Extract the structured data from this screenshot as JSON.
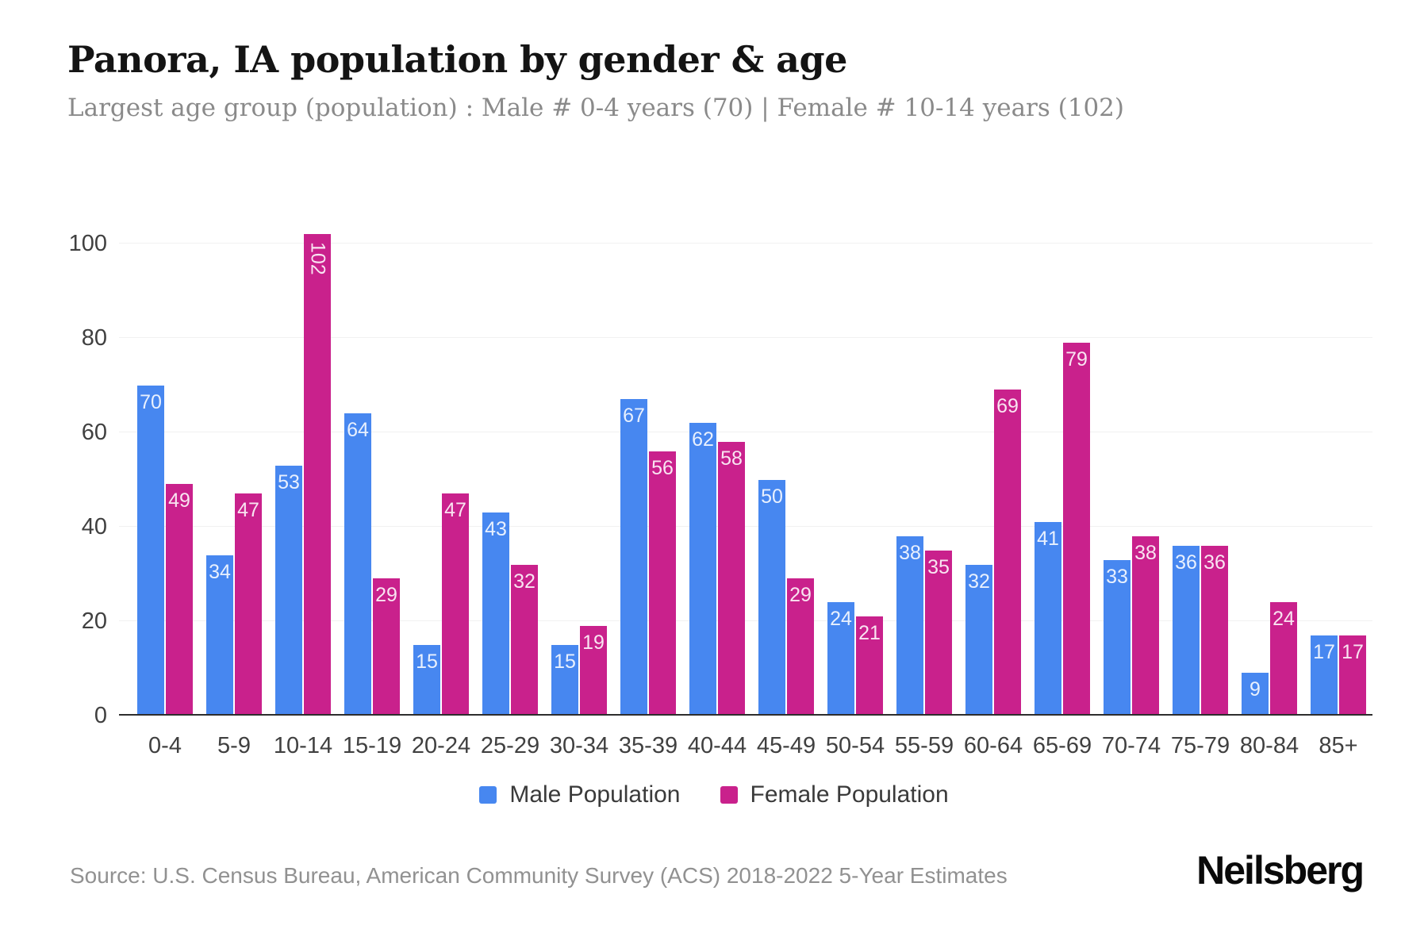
{
  "header": {
    "title": "Panora, IA population by gender & age",
    "subtitle": "Largest age group (population) : Male # 0-4 years (70) | Female # 10-14 years (102)"
  },
  "chart_data": {
    "type": "bar",
    "title": "Panora, IA population by gender & age",
    "categories": [
      "0-4",
      "5-9",
      "10-14",
      "15-19",
      "20-24",
      "25-29",
      "30-34",
      "35-39",
      "40-44",
      "45-49",
      "50-54",
      "55-59",
      "60-64",
      "65-69",
      "70-74",
      "75-79",
      "80-84",
      "85+"
    ],
    "series": [
      {
        "name": "Male Population",
        "color": "#4787F0",
        "values": [
          70,
          34,
          53,
          64,
          15,
          43,
          15,
          67,
          62,
          50,
          24,
          38,
          32,
          41,
          33,
          36,
          9,
          17
        ]
      },
      {
        "name": "Female Population",
        "color": "#C9218C",
        "values": [
          49,
          47,
          102,
          29,
          47,
          32,
          19,
          56,
          58,
          29,
          21,
          35,
          69,
          79,
          38,
          36,
          24,
          17
        ]
      }
    ],
    "xlabel": "",
    "ylabel": "",
    "ylim": [
      0,
      110
    ],
    "yticks": [
      0,
      20,
      40,
      60,
      80,
      100
    ],
    "grid": "horizontal",
    "legend_position": "bottom",
    "value_labels": "inside-top"
  },
  "legend": {
    "items": [
      {
        "label": "Male Population",
        "color": "#4787F0"
      },
      {
        "label": "Female Population",
        "color": "#C9218C"
      }
    ]
  },
  "footer": {
    "source": "Source: U.S. Census Bureau, American Community Survey (ACS) 2018-2022 5-Year Estimates",
    "logo": "Neilsberg"
  },
  "colors": {
    "male": "#4787F0",
    "female": "#C9218C",
    "grid": "#f1f1f1",
    "axis_line": "#2d2d2d",
    "tick_text": "#404040",
    "value_label": "rgba(255,255,255,0.88)"
  }
}
